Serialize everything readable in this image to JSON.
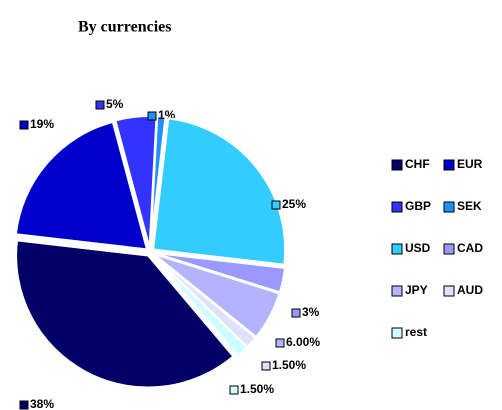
{
  "chart_data": {
    "type": "pie",
    "title": "By currencies",
    "categories": [
      "CHF",
      "EUR",
      "GBP",
      "SEK",
      "USD",
      "CAD",
      "JPY",
      "AUD",
      "rest"
    ],
    "values": [
      38,
      19,
      5,
      1,
      25,
      3,
      6,
      1.5,
      1.5
    ],
    "value_labels": [
      "38%",
      "19%",
      "5%",
      "1%",
      "25%",
      "3%",
      "6.00%",
      "1.50%",
      "1.50%"
    ],
    "colors": [
      "#000066",
      "#0000cc",
      "#3333ff",
      "#1e90ff",
      "#33ccff",
      "#9999ff",
      "#b3b3ff",
      "#e0e0ff",
      "#ccffff"
    ],
    "legend": "right"
  }
}
